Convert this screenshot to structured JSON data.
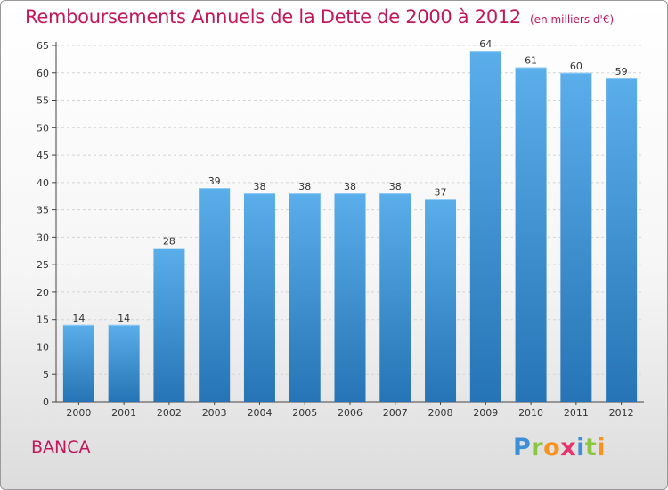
{
  "header": {
    "title": "Remboursements Annuels de la Dette de 2000 à 2012",
    "subtitle": "(en milliers d'€)"
  },
  "footer": {
    "region": "BANCA",
    "logo_letters": [
      {
        "ch": "P",
        "color": "#3d8fd6"
      },
      {
        "ch": "r",
        "color": "#8cc63f"
      },
      {
        "ch": "o",
        "color": "#f7931e"
      },
      {
        "ch": "x",
        "color": "#e8336d"
      },
      {
        "ch": "i",
        "color": "#3d8fd6"
      },
      {
        "ch": "t",
        "color": "#8cc63f"
      },
      {
        "ch": "i",
        "color": "#f7931e"
      }
    ]
  },
  "chart_data": {
    "type": "bar",
    "categories": [
      "2000",
      "2001",
      "2002",
      "2003",
      "2004",
      "2005",
      "2006",
      "2007",
      "2008",
      "2009",
      "2010",
      "2011",
      "2012"
    ],
    "values": [
      14,
      14,
      28,
      39,
      38,
      38,
      38,
      38,
      37,
      64,
      61,
      60,
      59
    ],
    "ylim": [
      0,
      65
    ],
    "yticks": [
      0,
      5,
      10,
      15,
      20,
      25,
      30,
      35,
      40,
      45,
      50,
      55,
      60,
      65
    ],
    "grid": true,
    "bar_color_top": "#5aaeea",
    "bar_color_bottom": "#2674b5",
    "title_color": "#c2185b"
  }
}
